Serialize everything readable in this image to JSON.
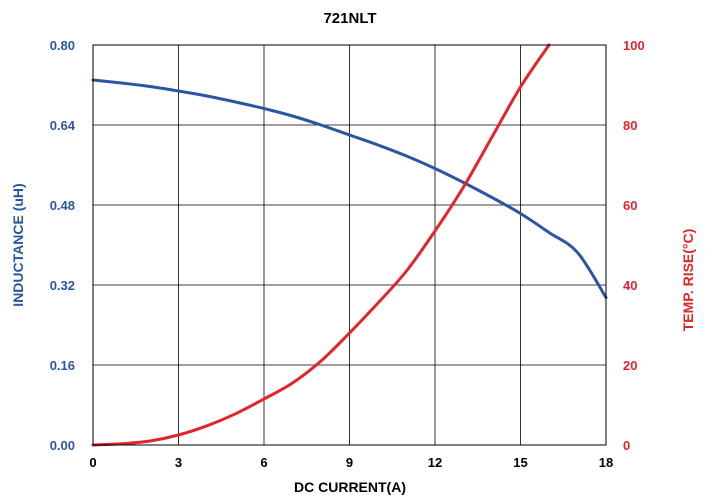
{
  "chart_data": {
    "type": "line",
    "title": "721NLT",
    "xlabel": "DC CURRENT(A)",
    "ylabel_left": "INDUCTANCE (uH)",
    "ylabel_right": "TEMP. RISE(°C)",
    "xlim": [
      0,
      18
    ],
    "ylim_left": [
      0,
      0.8
    ],
    "ylim_right": [
      0,
      100
    ],
    "x_ticks": [
      "0",
      "3",
      "6",
      "9",
      "12",
      "15",
      "18"
    ],
    "y_left_ticks": [
      "0.00",
      "0.16",
      "0.32",
      "0.48",
      "0.64",
      "0.80"
    ],
    "y_right_ticks": [
      "0",
      "20",
      "40",
      "60",
      "80",
      "100"
    ],
    "grid": true,
    "colors": {
      "inductance": "#2a56a3",
      "temp": "#e3242b",
      "grid": "#000000",
      "left_axis_text": "#2a56a3",
      "right_axis_text": "#e3242b"
    },
    "series": [
      {
        "axis": "left",
        "x": [
          0,
          1,
          2,
          3,
          4,
          5,
          6,
          7,
          8,
          9,
          10,
          11,
          12,
          13,
          14,
          15,
          16,
          17,
          18
        ],
        "values": [
          0.73,
          0.724,
          0.717,
          0.708,
          0.698,
          0.686,
          0.673,
          0.658,
          0.64,
          0.62,
          0.6,
          0.578,
          0.553,
          0.525,
          0.495,
          0.463,
          0.425,
          0.385,
          0.295
        ]
      },
      {
        "axis": "right",
        "x": [
          0,
          1,
          2,
          3,
          4,
          5,
          6,
          7,
          8,
          9,
          10,
          11,
          12,
          13,
          14,
          15,
          16
        ],
        "values": [
          0,
          0.3,
          1.0,
          2.5,
          4.8,
          7.8,
          11.5,
          15.5,
          21.0,
          28.0,
          35.5,
          43.5,
          53.5,
          64.5,
          77.0,
          89.5,
          100
        ]
      }
    ]
  }
}
